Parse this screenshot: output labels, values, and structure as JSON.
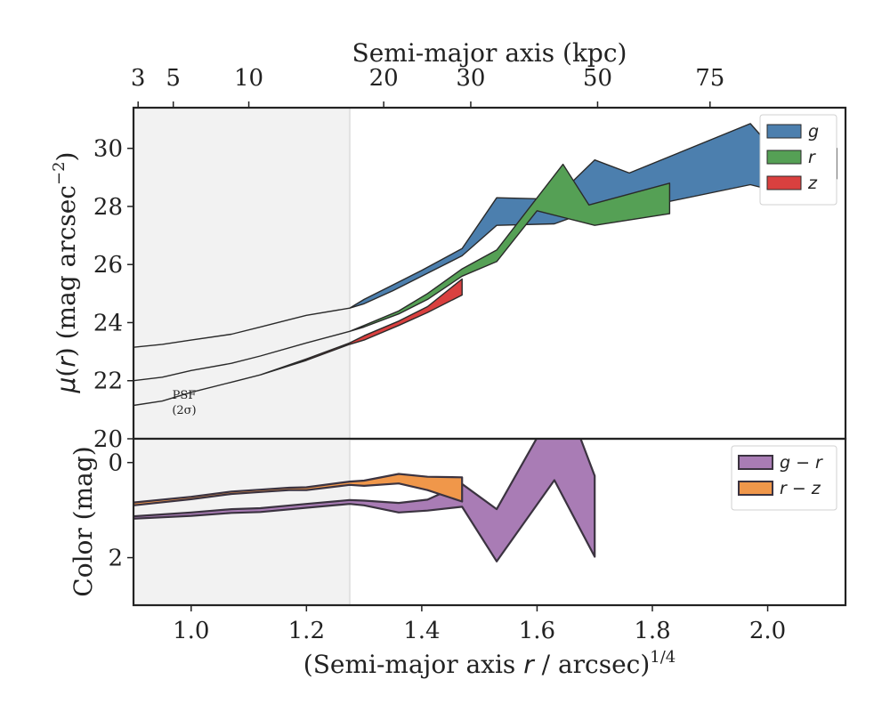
{
  "chart_data": [
    {
      "type": "area",
      "panel": "surface-brightness",
      "ylabel": "μ(r) (mag arcsec⁻²)",
      "ylim": [
        31.4,
        20
      ],
      "yticks": [
        20,
        22,
        24,
        26,
        28,
        30
      ],
      "xlim": [
        0.9,
        2.135
      ],
      "top_axis": {
        "label": "Semi-major axis (kpc)",
        "ticks_kpc": [
          "3",
          "5",
          "10",
          "20",
          "30",
          "50",
          "75"
        ],
        "tick_positions_x": [
          0.908,
          0.969,
          1.1,
          1.334,
          1.485,
          1.705,
          1.9
        ]
      },
      "shaded_region": {
        "x": [
          0.9,
          1.275
        ],
        "label": "PSF\n(2σ)"
      },
      "legend": {
        "position": "upper right"
      },
      "series": [
        {
          "name": "g",
          "color": "#4c7fae",
          "upper": [
            [
              0.9,
              23.15
            ],
            [
              0.95,
              23.25
            ],
            [
              1.0,
              23.4
            ],
            [
              1.07,
              23.6
            ],
            [
              1.12,
              23.85
            ],
            [
              1.17,
              24.1
            ],
            [
              1.2,
              24.25
            ],
            [
              1.275,
              24.5
            ],
            [
              1.3,
              24.65
            ],
            [
              1.35,
              25.1
            ],
            [
              1.4,
              25.6
            ],
            [
              1.47,
              26.3
            ],
            [
              1.53,
              27.35
            ],
            [
              1.63,
              27.4
            ],
            [
              1.7,
              27.9
            ],
            [
              1.8,
              28.05
            ],
            [
              1.97,
              28.75
            ],
            [
              2.05,
              28.35
            ],
            [
              2.12,
              28.95
            ]
          ],
          "lower": [
            [
              0.9,
              23.15
            ],
            [
              0.95,
              23.25
            ],
            [
              1.0,
              23.4
            ],
            [
              1.07,
              23.6
            ],
            [
              1.12,
              23.85
            ],
            [
              1.17,
              24.1
            ],
            [
              1.2,
              24.25
            ],
            [
              1.275,
              24.5
            ],
            [
              1.3,
              24.8
            ],
            [
              1.35,
              25.3
            ],
            [
              1.4,
              25.8
            ],
            [
              1.47,
              26.55
            ],
            [
              1.53,
              28.3
            ],
            [
              1.63,
              28.25
            ],
            [
              1.7,
              29.6
            ],
            [
              1.76,
              29.15
            ],
            [
              1.97,
              30.85
            ],
            [
              2.05,
              29.05
            ],
            [
              2.12,
              30.0
            ]
          ]
        },
        {
          "name": "r",
          "color": "#55a055",
          "upper": [
            [
              0.9,
              22.0
            ],
            [
              0.95,
              22.12
            ],
            [
              1.0,
              22.35
            ],
            [
              1.07,
              22.6
            ],
            [
              1.12,
              22.85
            ],
            [
              1.2,
              23.3
            ],
            [
              1.275,
              23.7
            ],
            [
              1.3,
              23.85
            ],
            [
              1.36,
              24.3
            ],
            [
              1.41,
              24.8
            ],
            [
              1.47,
              25.6
            ],
            [
              1.53,
              26.1
            ],
            [
              1.6,
              27.85
            ],
            [
              1.7,
              27.35
            ],
            [
              1.83,
              27.75
            ]
          ],
          "lower": [
            [
              0.9,
              22.0
            ],
            [
              0.95,
              22.12
            ],
            [
              1.0,
              22.35
            ],
            [
              1.07,
              22.6
            ],
            [
              1.12,
              22.85
            ],
            [
              1.2,
              23.3
            ],
            [
              1.275,
              23.7
            ],
            [
              1.3,
              23.9
            ],
            [
              1.36,
              24.4
            ],
            [
              1.41,
              25.0
            ],
            [
              1.47,
              25.85
            ],
            [
              1.53,
              26.5
            ],
            [
              1.645,
              29.45
            ],
            [
              1.69,
              28.05
            ],
            [
              1.83,
              28.8
            ]
          ]
        },
        {
          "name": "z",
          "color": "#d9403f",
          "upper": [
            [
              0.9,
              21.15
            ],
            [
              0.95,
              21.3
            ],
            [
              1.0,
              21.6
            ],
            [
              1.07,
              21.95
            ],
            [
              1.12,
              22.2
            ],
            [
              1.2,
              22.7
            ],
            [
              1.275,
              23.25
            ],
            [
              1.3,
              23.4
            ],
            [
              1.36,
              23.9
            ],
            [
              1.41,
              24.35
            ],
            [
              1.47,
              24.95
            ]
          ],
          "lower": [
            [
              0.9,
              21.15
            ],
            [
              0.95,
              21.3
            ],
            [
              1.0,
              21.6
            ],
            [
              1.07,
              21.95
            ],
            [
              1.12,
              22.2
            ],
            [
              1.2,
              22.75
            ],
            [
              1.275,
              23.3
            ],
            [
              1.3,
              23.55
            ],
            [
              1.36,
              24.05
            ],
            [
              1.41,
              24.55
            ],
            [
              1.47,
              25.5
            ]
          ]
        }
      ]
    },
    {
      "type": "area",
      "panel": "color",
      "ylabel": "Color (mag)",
      "xlabel": "(Semi-major axis r / arcsec)^1/4",
      "ylim": [
        -0.5,
        3
      ],
      "yticks": [
        0,
        2
      ],
      "xlim": [
        0.9,
        2.135
      ],
      "xticks": [
        1.0,
        1.2,
        1.4,
        1.6,
        1.8,
        2.0
      ],
      "xtick_labels": [
        "1.0",
        "1.2",
        "1.4",
        "1.6",
        "1.8",
        "2.0"
      ],
      "legend": {
        "position": "upper right"
      },
      "series": [
        {
          "name": "g − r",
          "color": "#a97cb5",
          "upper": [
            [
              0.9,
              1.18
            ],
            [
              1.0,
              1.12
            ],
            [
              1.07,
              1.06
            ],
            [
              1.12,
              1.04
            ],
            [
              1.2,
              0.95
            ],
            [
              1.275,
              0.87
            ],
            [
              1.3,
              0.9
            ],
            [
              1.36,
              1.05
            ],
            [
              1.41,
              1.01
            ],
            [
              1.47,
              0.93
            ],
            [
              1.53,
              2.08
            ],
            [
              1.63,
              0.37
            ],
            [
              1.7,
              1.98
            ]
          ],
          "lower": [
            [
              0.9,
              1.13
            ],
            [
              1.0,
              1.05
            ],
            [
              1.07,
              0.98
            ],
            [
              1.12,
              0.96
            ],
            [
              1.2,
              0.87
            ],
            [
              1.275,
              0.79
            ],
            [
              1.3,
              0.8
            ],
            [
              1.36,
              0.85
            ],
            [
              1.41,
              0.78
            ],
            [
              1.47,
              0.45
            ],
            [
              1.53,
              0.98
            ],
            [
              1.6,
              -0.52
            ],
            [
              1.675,
              -0.52
            ],
            [
              1.7,
              0.28
            ]
          ]
        },
        {
          "name": "r − z",
          "color": "#f0974a",
          "upper": [
            [
              0.9,
              0.9
            ],
            [
              1.0,
              0.77
            ],
            [
              1.07,
              0.66
            ],
            [
              1.12,
              0.62
            ],
            [
              1.17,
              0.58
            ],
            [
              1.2,
              0.58
            ],
            [
              1.275,
              0.47
            ],
            [
              1.3,
              0.49
            ],
            [
              1.36,
              0.44
            ],
            [
              1.41,
              0.58
            ],
            [
              1.47,
              0.82
            ]
          ],
          "lower": [
            [
              0.9,
              0.84
            ],
            [
              1.0,
              0.72
            ],
            [
              1.07,
              0.61
            ],
            [
              1.12,
              0.57
            ],
            [
              1.17,
              0.53
            ],
            [
              1.2,
              0.52
            ],
            [
              1.275,
              0.4
            ],
            [
              1.3,
              0.38
            ],
            [
              1.36,
              0.24
            ],
            [
              1.41,
              0.3
            ],
            [
              1.47,
              0.31
            ]
          ]
        }
      ]
    }
  ]
}
